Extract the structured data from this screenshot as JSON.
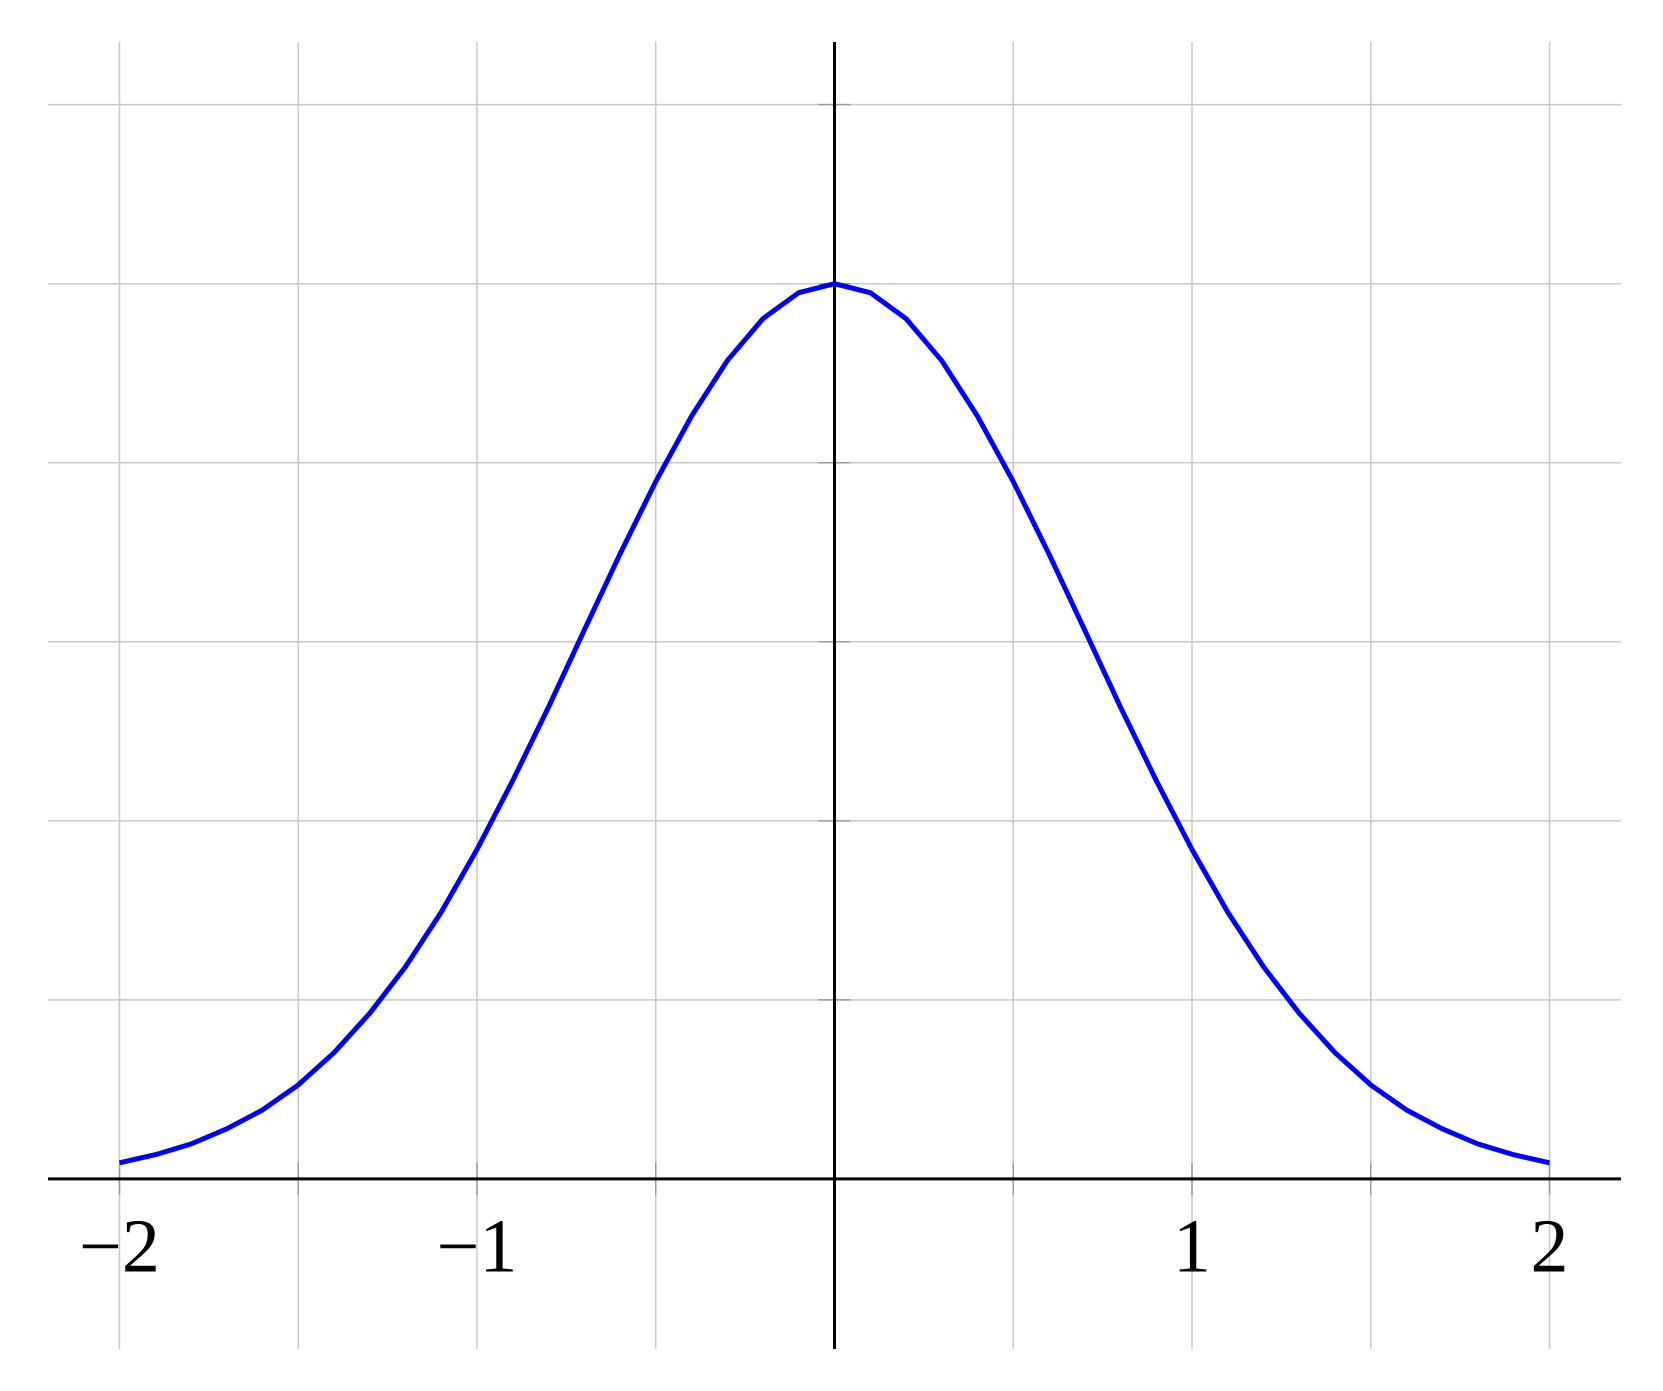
{
  "chart_data": {
    "type": "line",
    "x": [
      -2,
      -1.9,
      -1.8,
      -1.7,
      -1.6,
      -1.5,
      -1.4,
      -1.3,
      -1.2,
      -1.1,
      -1,
      -0.9,
      -0.8,
      -0.7,
      -0.6,
      -0.5,
      -0.4,
      -0.3,
      -0.2,
      -0.1,
      0,
      0.1,
      0.2,
      0.3,
      0.4,
      0.5,
      0.6,
      0.7,
      0.8,
      0.9,
      1,
      1.1,
      1.2,
      1.3,
      1.4,
      1.5,
      1.6,
      1.7,
      1.8,
      1.9,
      2
    ],
    "series": [
      {
        "color": "#0000ff",
        "values": [
          0.018,
          0.027,
          0.039,
          0.056,
          0.077,
          0.105,
          0.141,
          0.185,
          0.237,
          0.298,
          0.368,
          0.445,
          0.527,
          0.613,
          0.698,
          0.779,
          0.852,
          0.914,
          0.961,
          0.99,
          1,
          0.99,
          0.961,
          0.914,
          0.852,
          0.779,
          0.698,
          0.613,
          0.527,
          0.445,
          0.368,
          0.298,
          0.237,
          0.185,
          0.141,
          0.105,
          0.077,
          0.056,
          0.039,
          0.027,
          0.018
        ]
      }
    ],
    "xlim": [
      -2.2,
      2.2
    ],
    "ylim": [
      -0.19,
      1.27
    ],
    "xticks": [
      {
        "value": -2,
        "label": "−2"
      },
      {
        "value": -1,
        "label": "−1"
      },
      1,
      2
    ],
    "xgrid": [
      -2,
      -1.5,
      -1,
      -0.5,
      0.5,
      1,
      1.5,
      2
    ],
    "ygrid": [
      0.2,
      0.4,
      0.6,
      0.8,
      1,
      1.2
    ],
    "grid": true
  }
}
